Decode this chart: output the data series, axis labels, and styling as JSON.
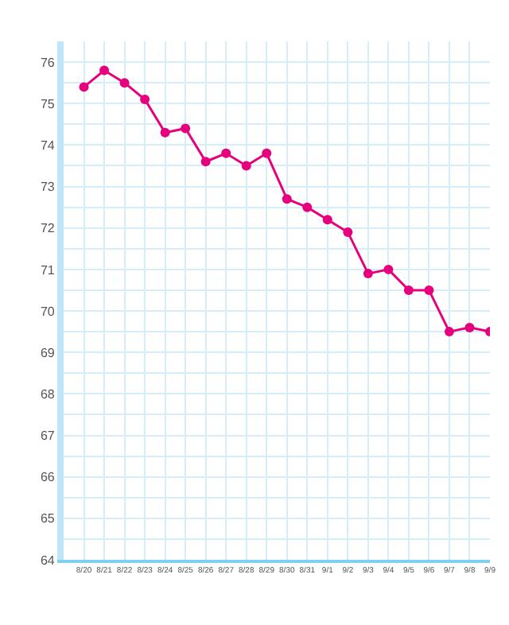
{
  "chart_data": {
    "type": "line",
    "categories": [
      "8/20",
      "8/21",
      "8/22",
      "8/23",
      "8/24",
      "8/25",
      "8/26",
      "8/27",
      "8/28",
      "8/29",
      "8/30",
      "8/31",
      "9/1",
      "9/2",
      "9/3",
      "9/4",
      "9/5",
      "9/6",
      "9/7",
      "9/8",
      "9/9"
    ],
    "series": [
      {
        "color": "#e6007e",
        "values": [
          75.4,
          75.8,
          75.5,
          75.1,
          74.3,
          74.4,
          73.6,
          73.8,
          73.5,
          73.8,
          72.7,
          72.5,
          72.2,
          71.9,
          70.9,
          71.0,
          70.5,
          70.5,
          69.5,
          69.6,
          69.5
        ]
      }
    ],
    "ylim": [
      64,
      76.5
    ],
    "yticks": [
      64,
      65,
      66,
      67,
      68,
      69,
      70,
      71,
      72,
      73,
      74,
      75,
      76
    ],
    "grid": true,
    "marker": "circle",
    "line_style": "solid"
  }
}
